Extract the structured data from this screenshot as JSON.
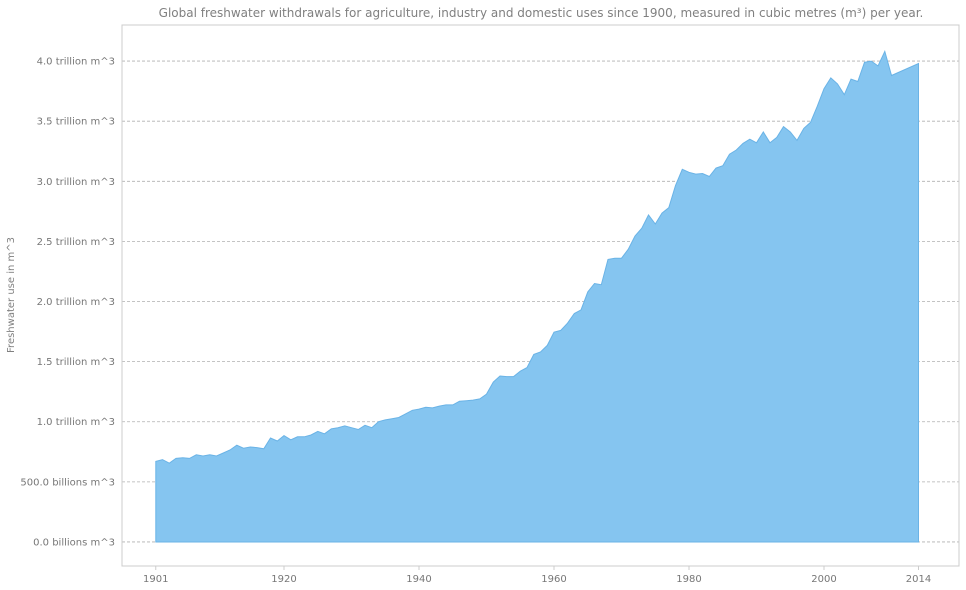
{
  "chart_data": {
    "type": "area",
    "title": "Global freshwater withdrawals for agriculture, industry and domestic uses since 1900, measured in cubic metres (m³) per year.",
    "xlabel": "",
    "ylabel": "Freshwater use in m^3",
    "xlim": [
      1896,
      2020
    ],
    "ylim": [
      -200000000000,
      4300000000000
    ],
    "grid": "horizontal dashed",
    "colors": {
      "fill": "#85c5f0",
      "line": "#6ab3e6",
      "text": "#777777",
      "grid": "#b0b0b0"
    },
    "x_ticks": [
      {
        "value": 1901,
        "label": "1901"
      },
      {
        "value": 1920,
        "label": "1920"
      },
      {
        "value": 1940,
        "label": "1940"
      },
      {
        "value": 1960,
        "label": "1960"
      },
      {
        "value": 1980,
        "label": "1980"
      },
      {
        "value": 2000,
        "label": "2000"
      },
      {
        "value": 2014,
        "label": "2014"
      }
    ],
    "y_ticks": [
      {
        "value": 0,
        "label": "0.0 billions m^3"
      },
      {
        "value": 500000000000,
        "label": "500.0 billions m^3"
      },
      {
        "value": 1000000000000,
        "label": "1.0 trillion m^3"
      },
      {
        "value": 1500000000000,
        "label": "1.5 trillion m^3"
      },
      {
        "value": 2000000000000,
        "label": "2.0 trillion m^3"
      },
      {
        "value": 2500000000000,
        "label": "2.5 trillion m^3"
      },
      {
        "value": 3000000000000,
        "label": "3.0 trillion m^3"
      },
      {
        "value": 3500000000000,
        "label": "3.5 trillion m^3"
      },
      {
        "value": 4000000000000,
        "label": "4.0 trillion m^3"
      }
    ],
    "series": [
      {
        "unit": "billion m^3",
        "x": [
          1901,
          1902,
          1903,
          1904,
          1905,
          1906,
          1907,
          1908,
          1909,
          1910,
          1911,
          1912,
          1913,
          1914,
          1915,
          1916,
          1917,
          1918,
          1919,
          1920,
          1921,
          1922,
          1923,
          1924,
          1925,
          1926,
          1927,
          1928,
          1929,
          1930,
          1931,
          1932,
          1933,
          1934,
          1935,
          1936,
          1937,
          1938,
          1939,
          1940,
          1941,
          1942,
          1943,
          1944,
          1945,
          1946,
          1947,
          1948,
          1949,
          1950,
          1951,
          1952,
          1953,
          1954,
          1955,
          1956,
          1957,
          1958,
          1959,
          1960,
          1961,
          1962,
          1963,
          1964,
          1965,
          1966,
          1967,
          1968,
          1969,
          1970,
          1971,
          1972,
          1973,
          1974,
          1975,
          1976,
          1977,
          1978,
          1979,
          1980,
          1981,
          1982,
          1983,
          1984,
          1985,
          1986,
          1987,
          1988,
          1989,
          1990,
          1991,
          1992,
          1993,
          1994,
          1995,
          1996,
          1997,
          1998,
          1999,
          2000,
          2001,
          2002,
          2003,
          2004,
          2005,
          2006,
          2007,
          2008,
          2009,
          2010,
          2014
        ],
        "values": [
          670,
          685,
          655,
          695,
          700,
          695,
          725,
          715,
          725,
          715,
          740,
          765,
          805,
          780,
          790,
          785,
          775,
          865,
          840,
          885,
          850,
          875,
          875,
          890,
          920,
          900,
          940,
          950,
          965,
          950,
          935,
          970,
          950,
          1000,
          1015,
          1025,
          1035,
          1065,
          1095,
          1105,
          1120,
          1115,
          1130,
          1140,
          1140,
          1170,
          1175,
          1180,
          1190,
          1230,
          1330,
          1380,
          1375,
          1375,
          1420,
          1450,
          1560,
          1580,
          1635,
          1745,
          1760,
          1820,
          1900,
          1930,
          2080,
          2150,
          2140,
          2350,
          2360,
          2360,
          2435,
          2545,
          2610,
          2720,
          2645,
          2735,
          2780,
          2965,
          3100,
          3075,
          3060,
          3065,
          3040,
          3110,
          3130,
          3225,
          3260,
          3315,
          3350,
          3320,
          3410,
          3320,
          3365,
          3455,
          3410,
          3340,
          3440,
          3490,
          3625,
          3770,
          3860,
          3810,
          3720,
          3850,
          3830,
          3990,
          4000,
          3960,
          4080,
          3880,
          3980
        ]
      }
    ]
  }
}
